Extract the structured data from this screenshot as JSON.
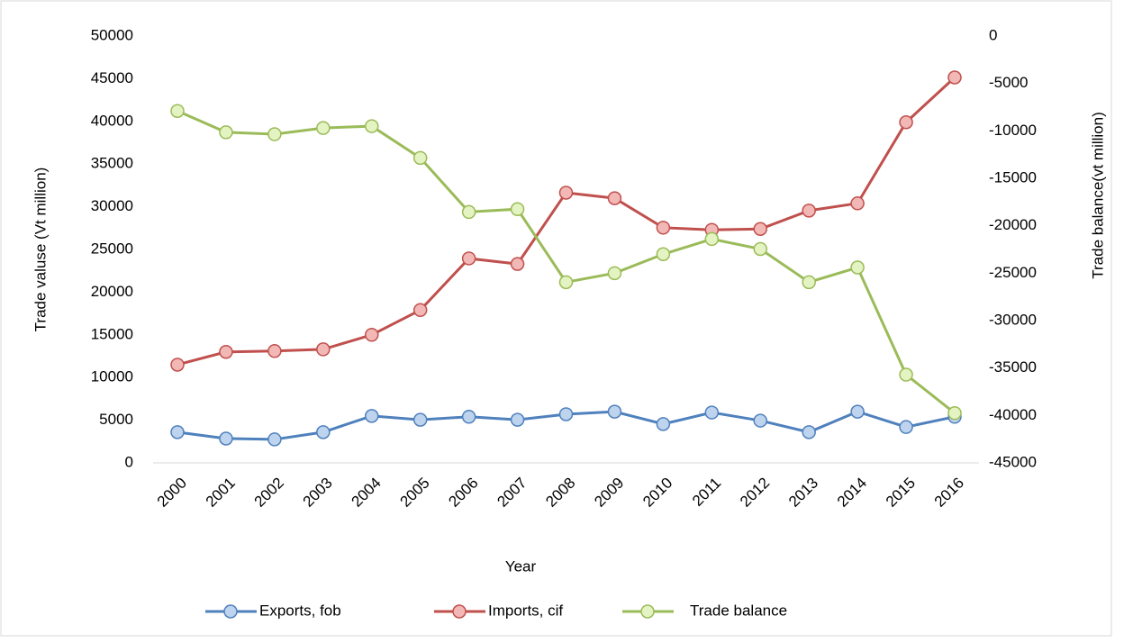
{
  "chart_data": {
    "type": "line",
    "x_label": "Year",
    "y_label": "Trade valuse (Vt million)",
    "y2_label": "Trade balance(vt million)",
    "categories": [
      "2000",
      "2001",
      "2002",
      "2003",
      "2004",
      "2005",
      "2006",
      "2007",
      "2008",
      "2009",
      "2010",
      "2011",
      "2012",
      "2013",
      "2014",
      "2015",
      "2016"
    ],
    "series": [
      {
        "name": "Exports, fob",
        "color": "#4f81bd",
        "marker_color": "#bdd3ee",
        "values": [
          3600,
          2850,
          2750,
          3600,
          5500,
          5050,
          5400,
          5050,
          5700,
          6000,
          4550,
          5900,
          4950,
          3600,
          6000,
          4200,
          5400
        ]
      },
      {
        "name": "Imports, cif",
        "color": "#c0504d",
        "marker_color": "#f2b8b6",
        "values": [
          11500,
          13000,
          13100,
          13300,
          15000,
          17900,
          23950,
          23300,
          31650,
          31000,
          27550,
          27300,
          27400,
          29550,
          30400,
          39900,
          45150
        ]
      },
      {
        "name": "Trade balance",
        "color": "#9bbb59",
        "marker_color": "#e4f3c2",
        "axis": "y2",
        "values": [
          -7900,
          -10150,
          -10350,
          -9700,
          -9500,
          -12850,
          -18550,
          -18250,
          -25950,
          -25000,
          -23000,
          -21400,
          -22450,
          -25950,
          -24400,
          -35700,
          -39750
        ]
      }
    ],
    "ylim": [
      0,
      50000
    ],
    "yticks": [
      0,
      5000,
      10000,
      15000,
      20000,
      25000,
      30000,
      35000,
      40000,
      45000,
      50000
    ],
    "y2lim": [
      -45000,
      0
    ],
    "y2ticks": [
      -45000,
      -40000,
      -35000,
      -30000,
      -25000,
      -20000,
      -15000,
      -10000,
      -5000,
      0
    ],
    "grid": false,
    "legend": "bottom"
  }
}
